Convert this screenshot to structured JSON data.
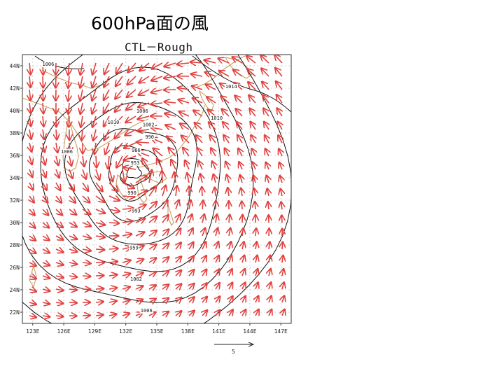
{
  "slide": {
    "title": "600hPa面の風",
    "plot_title": "CTL－Rough"
  },
  "map": {
    "lon_labels": [
      "123E",
      "126E",
      "129E",
      "132E",
      "135E",
      "138E",
      "141E",
      "144E",
      "147E"
    ],
    "lat_labels": [
      "44N",
      "42N",
      "40N",
      "38N",
      "36N",
      "34N",
      "32N",
      "30N",
      "28N",
      "26N",
      "24N",
      "22N"
    ],
    "extent": {
      "lon": [
        122,
        148
      ],
      "lat": [
        21,
        45
      ]
    },
    "contour_labels": [
      {
        "text": "1006",
        "lon": 124.5,
        "lat": 44.0
      },
      {
        "text": "1014",
        "lon": 142.2,
        "lat": 42.0
      },
      {
        "text": "1006",
        "lon": 133.6,
        "lat": 39.8
      },
      {
        "text": "1010",
        "lon": 130.8,
        "lat": 38.8
      },
      {
        "text": "1002",
        "lon": 134.2,
        "lat": 38.6
      },
      {
        "text": "1010",
        "lon": 140.8,
        "lat": 39.2
      },
      {
        "text": "990",
        "lon": 134.3,
        "lat": 37.5
      },
      {
        "text": "1006",
        "lon": 126.3,
        "lat": 36.2
      },
      {
        "text": "986",
        "lon": 133.0,
        "lat": 36.3
      },
      {
        "text": "953",
        "lon": 132.9,
        "lat": 35.2
      },
      {
        "text": "990",
        "lon": 132.6,
        "lat": 32.5
      },
      {
        "text": "993",
        "lon": 133.0,
        "lat": 30.9
      },
      {
        "text": "959",
        "lon": 132.8,
        "lat": 27.6
      },
      {
        "text": "1002",
        "lon": 133.0,
        "lat": 24.8
      },
      {
        "text": "1006",
        "lon": 134.0,
        "lat": 22.0
      }
    ],
    "vector_scale_label": "5",
    "colors": {
      "vectors": "#e0403e",
      "contours": "#111111",
      "coast": "#c8a060",
      "grid": "#c8c8c8"
    }
  }
}
